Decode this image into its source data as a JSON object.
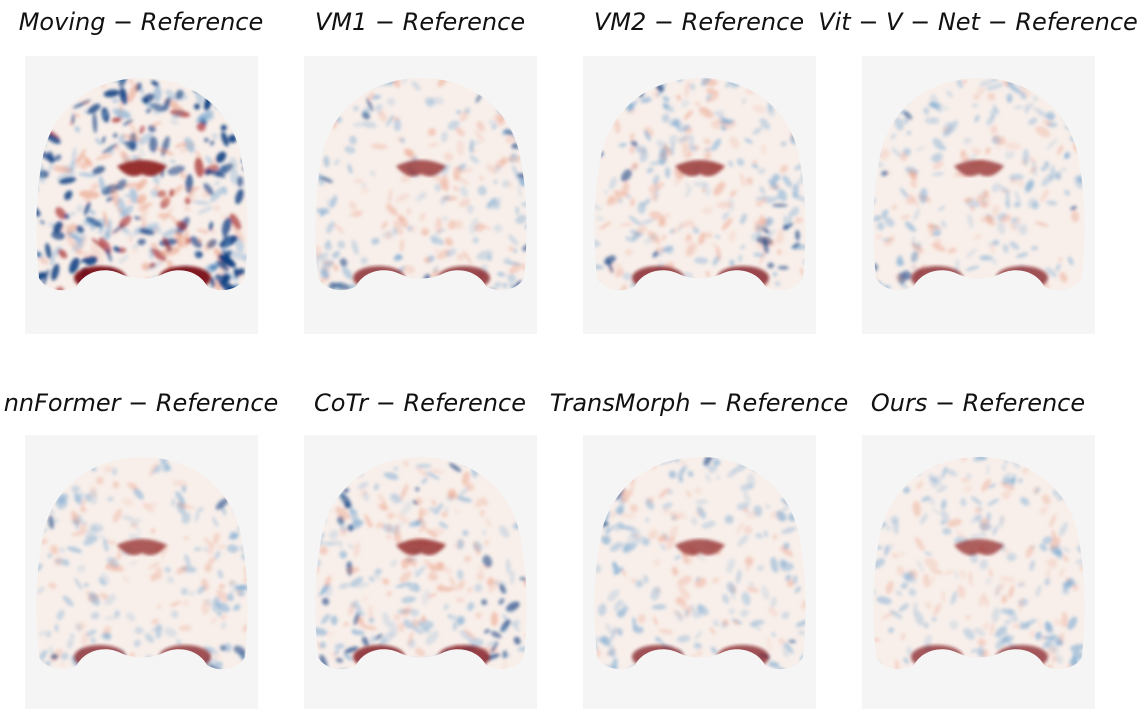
{
  "panels": [
    {
      "title": "Moving − Reference"
    },
    {
      "title": "VM1 − Reference"
    },
    {
      "title": "VM2 − Reference"
    },
    {
      "title": "Vit − V − Net − Reference"
    },
    {
      "title": "nnFormer − Reference"
    },
    {
      "title": "CoTr − Reference"
    },
    {
      "title": "TransMorph − Reference"
    },
    {
      "title": "Ours − Reference"
    }
  ]
}
